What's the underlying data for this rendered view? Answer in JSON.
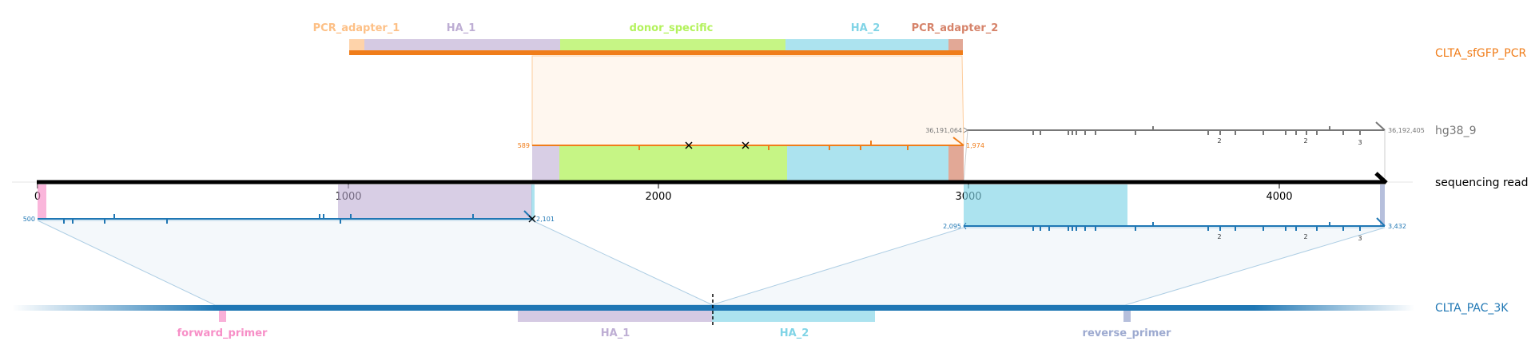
{
  "top_features": [
    {
      "name": "PCR_adapter_1",
      "color": "#fdc086"
    },
    {
      "name": "HA_1",
      "color": "#beaed4"
    },
    {
      "name": "donor_specific",
      "color": "#b3f25c"
    },
    {
      "name": "HA_2",
      "color": "#80d4e6"
    },
    {
      "name": "PCR_adapter_2",
      "color": "#d6836a"
    }
  ],
  "bottom_features": [
    {
      "name": "forward_primer",
      "color": "#f78fc7"
    },
    {
      "name": "HA_1",
      "color": "#beaed4"
    },
    {
      "name": "HA_2",
      "color": "#80d4e6"
    },
    {
      "name": "reverse_primer",
      "color": "#9daad0"
    }
  ],
  "tracks": {
    "donor": {
      "name": "CLTA_sfGFP_PCR",
      "color": "#f07d1a"
    },
    "genome": {
      "name": "hg38_9",
      "color": "#777777"
    },
    "read": {
      "name": "sequencing read",
      "color": "#000000"
    },
    "target": {
      "name": "CLTA_PAC_3K",
      "color": "#1f77b4"
    }
  },
  "axis_ticks": [
    "0",
    "1000",
    "2000",
    "3000",
    "4000"
  ],
  "alignment_labels": {
    "donor_start": "589",
    "donor_end": "1,974",
    "genome_start": "36,191,064",
    "genome_end": "36,192,405",
    "target1_start": "500",
    "target1_end": "2,101",
    "target2_start": "2,095",
    "target2_end": "3,432"
  },
  "mismatch_counts": [
    "2",
    "2",
    "3"
  ]
}
